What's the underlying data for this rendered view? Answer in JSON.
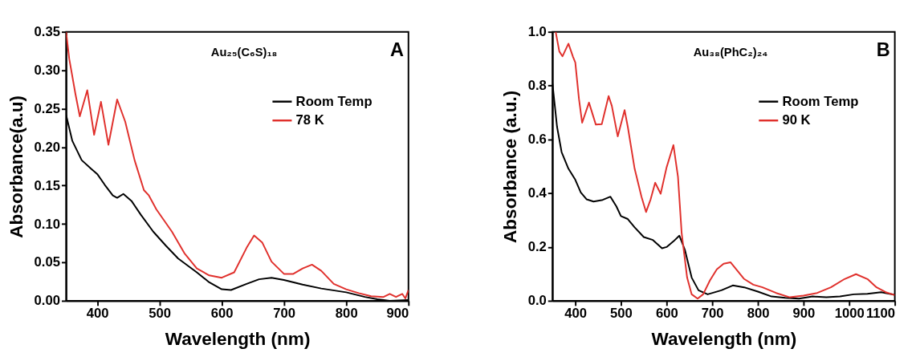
{
  "chart_data": [
    {
      "type": "line",
      "xlabel": "Wavelength (nm)",
      "ylabel": "Absorbance(a.u)",
      "annotations": [
        "Au₂₅(C₆S)₁₈",
        "A"
      ],
      "legend": "right",
      "xlim": [
        350,
        900
      ],
      "xticks": [
        400,
        500,
        600,
        700,
        800,
        900
      ],
      "ylim": [
        0,
        0.35
      ],
      "yticks": [
        {
          "value": 0,
          "label": "0.00"
        },
        {
          "value": 0.05,
          "label": "0.05"
        },
        {
          "value": 0.1,
          "label": "0.10"
        },
        {
          "value": 0.15,
          "label": "0.15"
        },
        {
          "value": 0.2,
          "label": "0.20"
        },
        {
          "value": 0.25,
          "label": "0.25"
        },
        {
          "value": 0.3,
          "label": "0.30"
        },
        {
          "value": 0.35,
          "label": "0.35"
        }
      ],
      "series": [
        {
          "name": "Room Temp",
          "color": "#000000",
          "x": [
            350,
            360,
            375,
            390,
            400,
            412,
            425,
            432,
            442,
            455,
            470,
            490,
            510,
            530,
            560,
            580,
            600,
            615,
            640,
            660,
            680,
            700,
            730,
            760,
            800,
            830,
            850,
            870,
            900
          ],
          "values": [
            0.242,
            0.208,
            0.183,
            0.172,
            0.165,
            0.151,
            0.137,
            0.134,
            0.139,
            0.13,
            0.112,
            0.09,
            0.072,
            0.055,
            0.037,
            0.024,
            0.015,
            0.014,
            0.022,
            0.028,
            0.03,
            0.027,
            0.021,
            0.016,
            0.011,
            0.005,
            0.002,
            0.0,
            0.001
          ]
        },
        {
          "name": "78 K",
          "color": "#e0302c",
          "x": [
            350,
            355,
            365,
            372,
            384,
            395,
            406,
            418,
            432,
            445,
            460,
            475,
            483,
            495,
            520,
            540,
            560,
            580,
            600,
            620,
            640,
            652,
            665,
            680,
            700,
            715,
            730,
            745,
            760,
            780,
            800,
            820,
            840,
            860,
            870,
            880,
            890,
            895,
            900
          ],
          "values": [
            0.35,
            0.315,
            0.269,
            0.24,
            0.274,
            0.216,
            0.259,
            0.203,
            0.262,
            0.233,
            0.183,
            0.144,
            0.137,
            0.119,
            0.09,
            0.062,
            0.042,
            0.033,
            0.03,
            0.037,
            0.069,
            0.085,
            0.076,
            0.051,
            0.035,
            0.035,
            0.042,
            0.047,
            0.039,
            0.022,
            0.015,
            0.01,
            0.006,
            0.005,
            0.009,
            0.005,
            0.009,
            0.003,
            0.014
          ]
        }
      ]
    },
    {
      "type": "line",
      "xlabel": "Wavelength (nm)",
      "ylabel": "Absorbance (a.u.)",
      "annotations": [
        "Au₃₈(PhC₂)₂₄",
        "B"
      ],
      "legend": "right",
      "xlim": [
        350,
        1100
      ],
      "xticks": [
        400,
        500,
        600,
        700,
        800,
        900,
        1000,
        1100
      ],
      "ylim": [
        0,
        1.0
      ],
      "yticks": [
        {
          "value": 0,
          "label": "0.0"
        },
        0.2,
        0.4,
        0.6,
        0.8,
        {
          "value": 1,
          "label": "1.0"
        }
      ],
      "series": [
        {
          "name": "Room Temp",
          "color": "#000000",
          "x": [
            350,
            360,
            370,
            385,
            400,
            412,
            425,
            440,
            460,
            477,
            490,
            500,
            515,
            530,
            550,
            570,
            590,
            600,
            615,
            628,
            640,
            655,
            670,
            690,
            720,
            745,
            770,
            800,
            830,
            860,
            890,
            920,
            950,
            980,
            1010,
            1040,
            1070,
            1100
          ],
          "values": [
            0.808,
            0.647,
            0.553,
            0.491,
            0.45,
            0.403,
            0.377,
            0.369,
            0.375,
            0.387,
            0.351,
            0.315,
            0.304,
            0.273,
            0.237,
            0.226,
            0.195,
            0.2,
            0.221,
            0.242,
            0.19,
            0.086,
            0.039,
            0.024,
            0.039,
            0.057,
            0.05,
            0.034,
            0.016,
            0.011,
            0.008,
            0.016,
            0.013,
            0.016,
            0.024,
            0.026,
            0.032,
            0.022
          ]
        },
        {
          "name": "90 K",
          "color": "#e0302c",
          "x": [
            357,
            365,
            372,
            385,
            395,
            400,
            408,
            415,
            430,
            445,
            458,
            473,
            480,
            493,
            508,
            515,
            530,
            545,
            555,
            565,
            575,
            587,
            600,
            615,
            625,
            633,
            645,
            655,
            668,
            680,
            695,
            710,
            725,
            740,
            755,
            770,
            790,
            810,
            840,
            870,
            900,
            930,
            960,
            990,
            1015,
            1040,
            1060,
            1080,
            1100
          ],
          "values": [
            1.0,
            0.927,
            0.909,
            0.956,
            0.907,
            0.886,
            0.751,
            0.662,
            0.737,
            0.655,
            0.657,
            0.761,
            0.725,
            0.611,
            0.709,
            0.647,
            0.491,
            0.387,
            0.33,
            0.377,
            0.439,
            0.398,
            0.496,
            0.579,
            0.46,
            0.252,
            0.086,
            0.024,
            0.008,
            0.024,
            0.076,
            0.117,
            0.138,
            0.143,
            0.112,
            0.081,
            0.06,
            0.05,
            0.029,
            0.013,
            0.019,
            0.029,
            0.05,
            0.081,
            0.099,
            0.081,
            0.05,
            0.032,
            0.021
          ]
        }
      ]
    }
  ]
}
